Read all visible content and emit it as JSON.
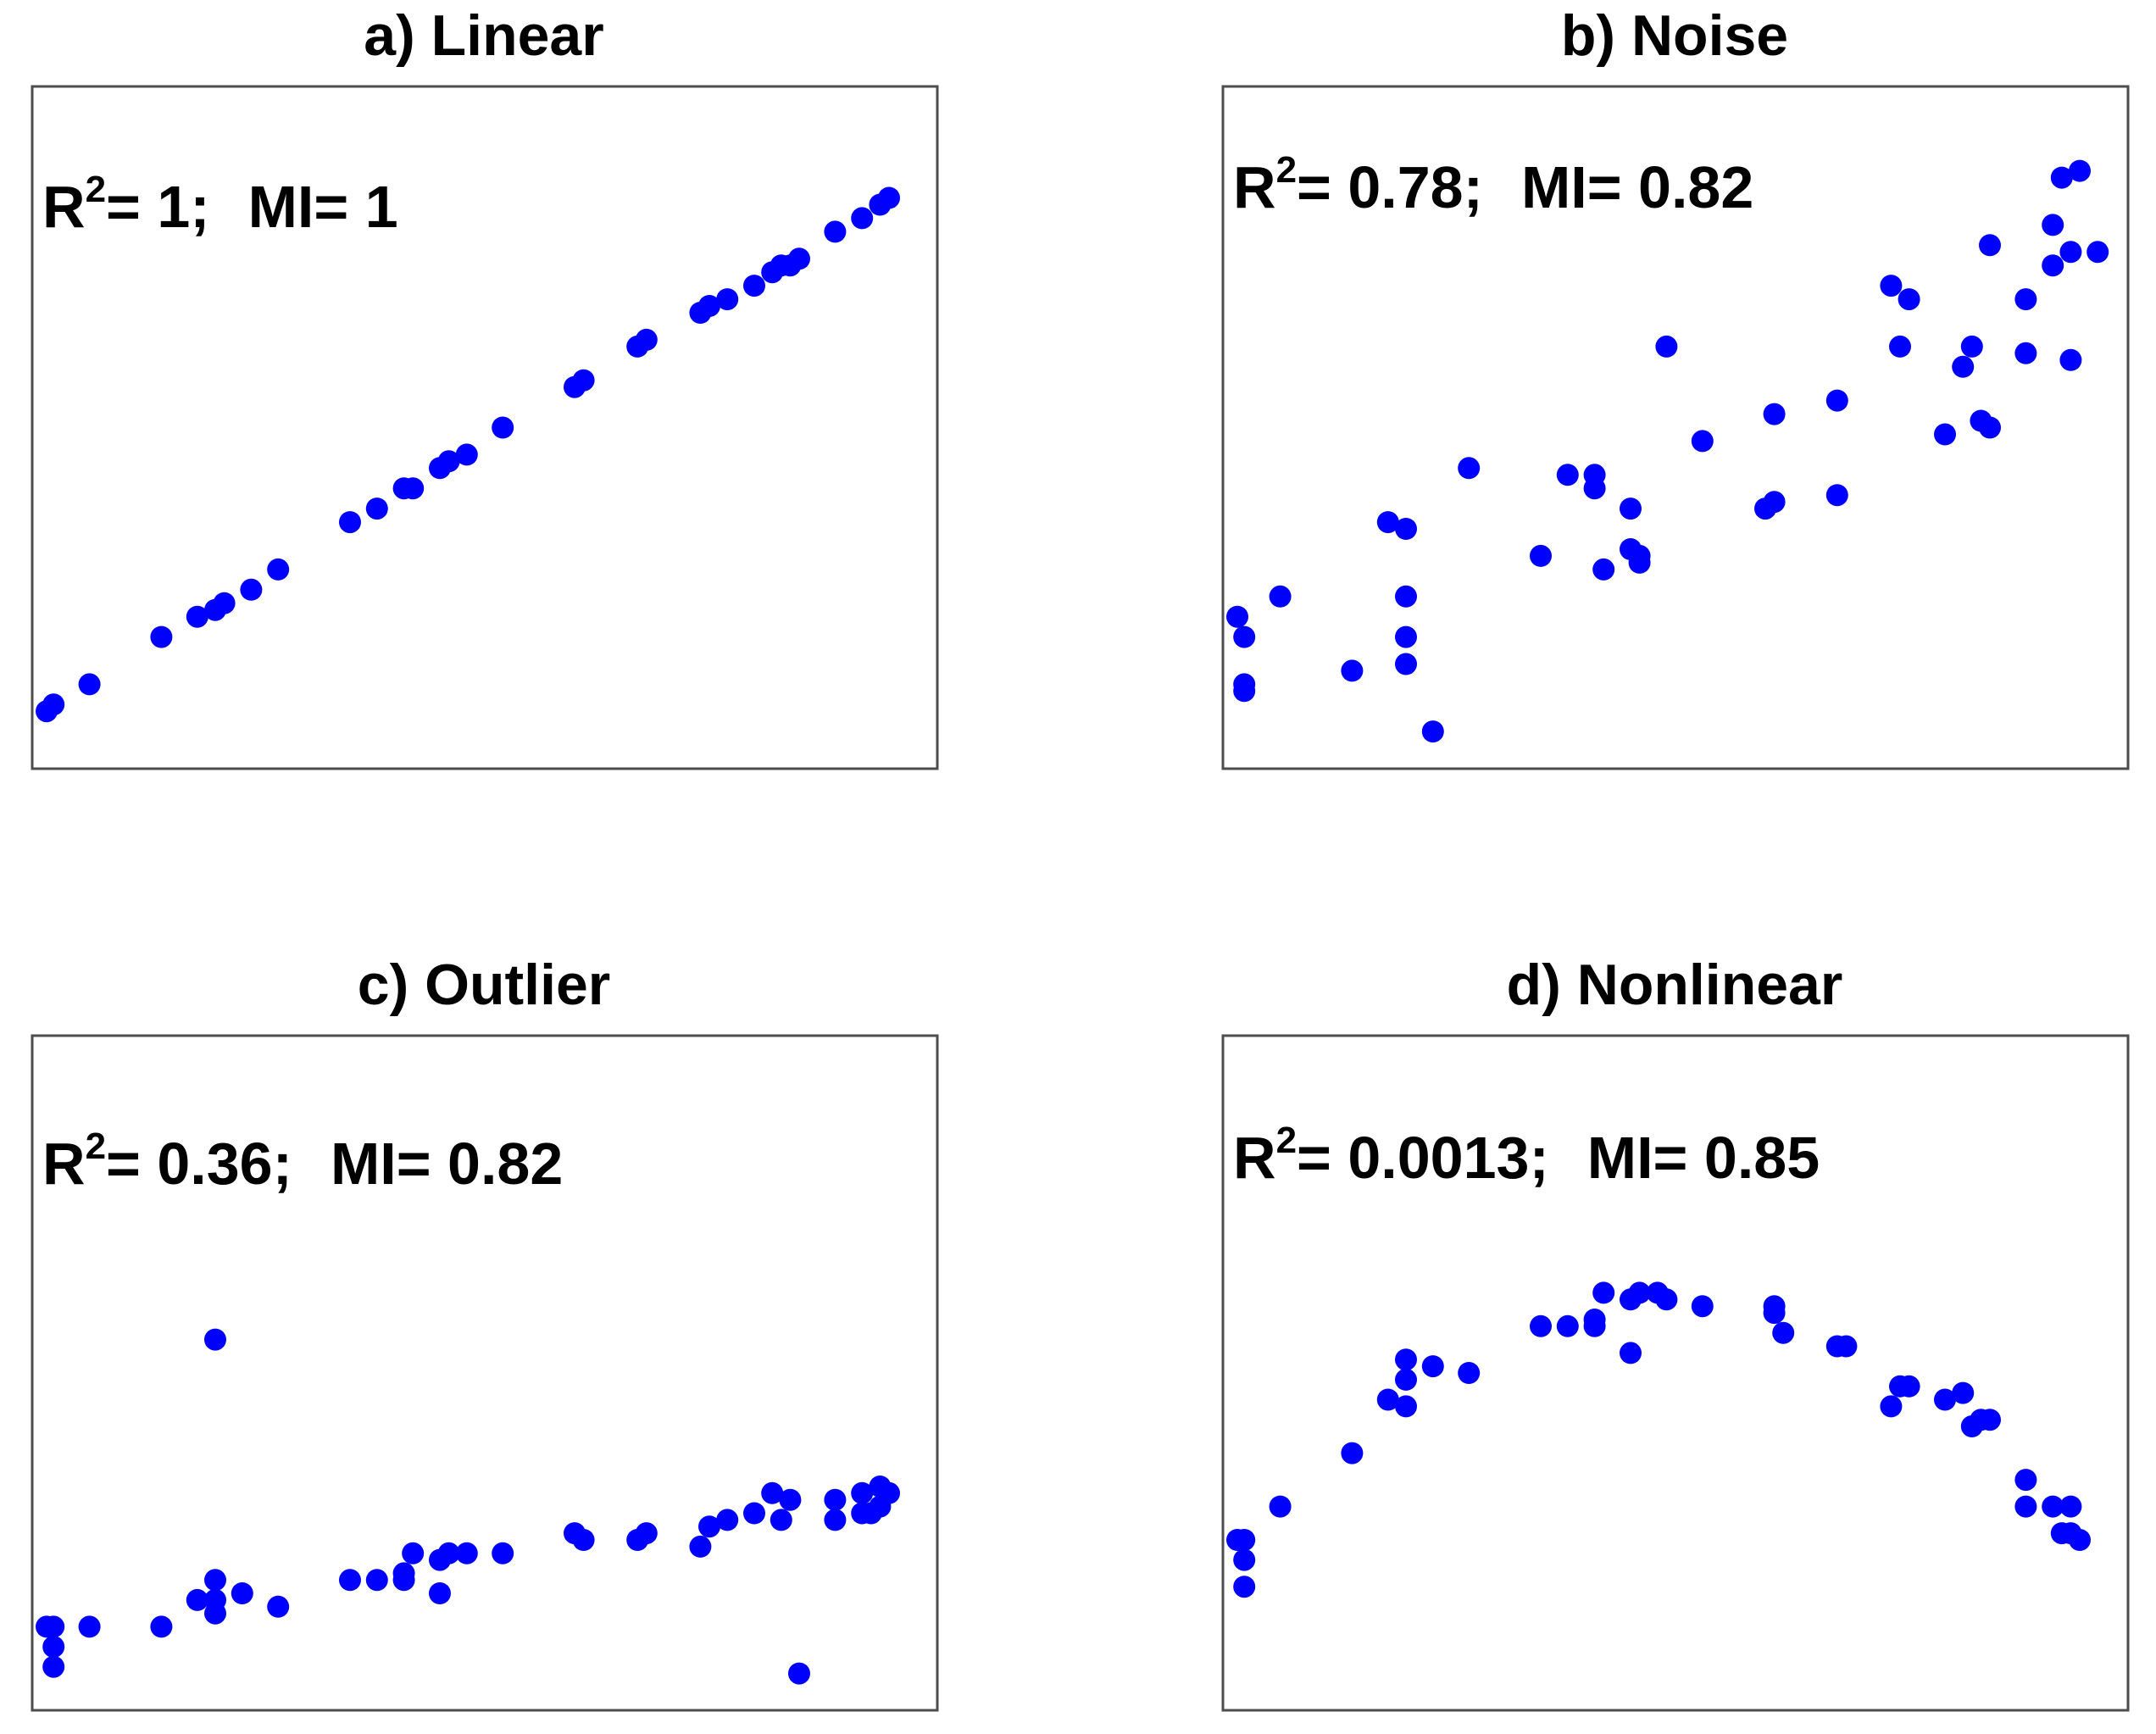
{
  "chart_data": [
    {
      "type": "scatter",
      "title": "a) Linear",
      "annotation": {
        "r2_label": "R",
        "r2_sup": "2",
        "r2_eq": "= 1;",
        "mi_text": "MI= 1"
      },
      "stats": {
        "r2": 1,
        "mi": 1
      },
      "xlim": [
        0,
        1
      ],
      "ylim": [
        0,
        1
      ],
      "axes_shown": false,
      "grid": false,
      "point_color": "#0000ff",
      "points": [
        [
          0.01,
          0.08
        ],
        [
          0.02,
          0.09
        ],
        [
          0.06,
          0.12
        ],
        [
          0.14,
          0.19
        ],
        [
          0.18,
          0.22
        ],
        [
          0.2,
          0.23
        ],
        [
          0.21,
          0.24
        ],
        [
          0.24,
          0.26
        ],
        [
          0.27,
          0.29
        ],
        [
          0.35,
          0.36
        ],
        [
          0.38,
          0.38
        ],
        [
          0.41,
          0.41
        ],
        [
          0.42,
          0.41
        ],
        [
          0.45,
          0.44
        ],
        [
          0.46,
          0.45
        ],
        [
          0.48,
          0.46
        ],
        [
          0.52,
          0.5
        ],
        [
          0.6,
          0.56
        ],
        [
          0.61,
          0.57
        ],
        [
          0.67,
          0.62
        ],
        [
          0.68,
          0.63
        ],
        [
          0.74,
          0.67
        ],
        [
          0.75,
          0.68
        ],
        [
          0.77,
          0.69
        ],
        [
          0.8,
          0.71
        ],
        [
          0.82,
          0.73
        ],
        [
          0.83,
          0.74
        ],
        [
          0.84,
          0.74
        ],
        [
          0.85,
          0.75
        ],
        [
          0.89,
          0.79
        ],
        [
          0.92,
          0.81
        ],
        [
          0.94,
          0.83
        ],
        [
          0.95,
          0.84
        ]
      ]
    },
    {
      "type": "scatter",
      "title": "b) Noise",
      "annotation": {
        "r2_label": "R",
        "r2_sup": "2",
        "r2_eq": "= 0.78;",
        "mi_text": "MI= 0.82"
      },
      "stats": {
        "r2": 0.78,
        "mi": 0.82
      },
      "xlim": [
        0,
        1
      ],
      "ylim": [
        0,
        1
      ],
      "axes_shown": false,
      "grid": false,
      "point_color": "#0000ff",
      "points": [
        [
          0.01,
          0.22
        ],
        [
          0.02,
          0.19
        ],
        [
          0.02,
          0.11
        ],
        [
          0.02,
          0.12
        ],
        [
          0.06,
          0.25
        ],
        [
          0.14,
          0.14
        ],
        [
          0.18,
          0.36
        ],
        [
          0.2,
          0.35
        ],
        [
          0.2,
          0.19
        ],
        [
          0.2,
          0.15
        ],
        [
          0.2,
          0.25
        ],
        [
          0.23,
          0.05
        ],
        [
          0.27,
          0.44
        ],
        [
          0.35,
          0.31
        ],
        [
          0.38,
          0.43
        ],
        [
          0.41,
          0.43
        ],
        [
          0.41,
          0.41
        ],
        [
          0.42,
          0.29
        ],
        [
          0.45,
          0.38
        ],
        [
          0.45,
          0.32
        ],
        [
          0.46,
          0.3
        ],
        [
          0.46,
          0.31
        ],
        [
          0.49,
          0.62
        ],
        [
          0.53,
          0.48
        ],
        [
          0.6,
          0.38
        ],
        [
          0.61,
          0.52
        ],
        [
          0.61,
          0.39
        ],
        [
          0.68,
          0.4
        ],
        [
          0.68,
          0.54
        ],
        [
          0.74,
          0.71
        ],
        [
          0.75,
          0.62
        ],
        [
          0.76,
          0.69
        ],
        [
          0.8,
          0.49
        ],
        [
          0.82,
          0.59
        ],
        [
          0.83,
          0.62
        ],
        [
          0.84,
          0.51
        ],
        [
          0.85,
          0.5
        ],
        [
          0.85,
          0.77
        ],
        [
          0.89,
          0.61
        ],
        [
          0.89,
          0.69
        ],
        [
          0.92,
          0.8
        ],
        [
          0.92,
          0.74
        ],
        [
          0.93,
          0.87
        ],
        [
          0.94,
          0.76
        ],
        [
          0.94,
          0.6
        ],
        [
          0.95,
          0.88
        ],
        [
          0.97,
          0.76
        ]
      ]
    },
    {
      "type": "scatter",
      "title": "c) Outlier",
      "annotation": {
        "r2_label": "R",
        "r2_sup": "2",
        "r2_eq": "= 0.36;",
        "mi_text": "MI= 0.82"
      },
      "stats": {
        "r2": 0.36,
        "mi": 0.82
      },
      "xlim": [
        0,
        1
      ],
      "ylim": [
        0,
        1
      ],
      "axes_shown": false,
      "grid": false,
      "point_color": "#0000ff",
      "points": [
        [
          0.01,
          0.12
        ],
        [
          0.02,
          0.12
        ],
        [
          0.02,
          0.09
        ],
        [
          0.02,
          0.06
        ],
        [
          0.06,
          0.12
        ],
        [
          0.14,
          0.12
        ],
        [
          0.18,
          0.16
        ],
        [
          0.2,
          0.16
        ],
        [
          0.2,
          0.19
        ],
        [
          0.2,
          0.14
        ],
        [
          0.2,
          0.55
        ],
        [
          0.23,
          0.17
        ],
        [
          0.27,
          0.15
        ],
        [
          0.35,
          0.19
        ],
        [
          0.38,
          0.19
        ],
        [
          0.41,
          0.2
        ],
        [
          0.41,
          0.19
        ],
        [
          0.42,
          0.23
        ],
        [
          0.45,
          0.17
        ],
        [
          0.45,
          0.22
        ],
        [
          0.46,
          0.23
        ],
        [
          0.48,
          0.23
        ],
        [
          0.52,
          0.23
        ],
        [
          0.6,
          0.26
        ],
        [
          0.61,
          0.25
        ],
        [
          0.67,
          0.25
        ],
        [
          0.68,
          0.26
        ],
        [
          0.74,
          0.24
        ],
        [
          0.75,
          0.27
        ],
        [
          0.77,
          0.28
        ],
        [
          0.8,
          0.29
        ],
        [
          0.82,
          0.32
        ],
        [
          0.83,
          0.28
        ],
        [
          0.84,
          0.31
        ],
        [
          0.85,
          0.05
        ],
        [
          0.89,
          0.28
        ],
        [
          0.89,
          0.31
        ],
        [
          0.92,
          0.32
        ],
        [
          0.92,
          0.29
        ],
        [
          0.93,
          0.29
        ],
        [
          0.94,
          0.33
        ],
        [
          0.94,
          0.3
        ],
        [
          0.95,
          0.32
        ]
      ]
    },
    {
      "type": "scatter",
      "title": "d) Nonlinear",
      "annotation": {
        "r2_label": "R",
        "r2_sup": "2",
        "r2_eq": "= 0.0013;",
        "mi_text": "MI= 0.85"
      },
      "stats": {
        "r2": 0.0013,
        "mi": 0.85
      },
      "xlim": [
        0,
        1
      ],
      "ylim": [
        0,
        1
      ],
      "axes_shown": false,
      "grid": false,
      "point_color": "#0000ff",
      "points": [
        [
          0.01,
          0.25
        ],
        [
          0.02,
          0.25
        ],
        [
          0.02,
          0.22
        ],
        [
          0.02,
          0.18
        ],
        [
          0.06,
          0.3
        ],
        [
          0.14,
          0.38
        ],
        [
          0.18,
          0.46
        ],
        [
          0.2,
          0.45
        ],
        [
          0.2,
          0.49
        ],
        [
          0.2,
          0.52
        ],
        [
          0.23,
          0.51
        ],
        [
          0.27,
          0.5
        ],
        [
          0.35,
          0.57
        ],
        [
          0.38,
          0.57
        ],
        [
          0.41,
          0.58
        ],
        [
          0.41,
          0.57
        ],
        [
          0.42,
          0.62
        ],
        [
          0.45,
          0.53
        ],
        [
          0.45,
          0.61
        ],
        [
          0.46,
          0.62
        ],
        [
          0.48,
          0.62
        ],
        [
          0.49,
          0.61
        ],
        [
          0.53,
          0.6
        ],
        [
          0.61,
          0.6
        ],
        [
          0.61,
          0.59
        ],
        [
          0.62,
          0.56
        ],
        [
          0.68,
          0.54
        ],
        [
          0.69,
          0.54
        ],
        [
          0.74,
          0.45
        ],
        [
          0.75,
          0.48
        ],
        [
          0.76,
          0.48
        ],
        [
          0.8,
          0.46
        ],
        [
          0.82,
          0.47
        ],
        [
          0.83,
          0.42
        ],
        [
          0.84,
          0.43
        ],
        [
          0.85,
          0.43
        ],
        [
          0.89,
          0.34
        ],
        [
          0.89,
          0.3
        ],
        [
          0.92,
          0.3
        ],
        [
          0.93,
          0.26
        ],
        [
          0.94,
          0.3
        ],
        [
          0.94,
          0.26
        ],
        [
          0.95,
          0.25
        ]
      ]
    }
  ]
}
